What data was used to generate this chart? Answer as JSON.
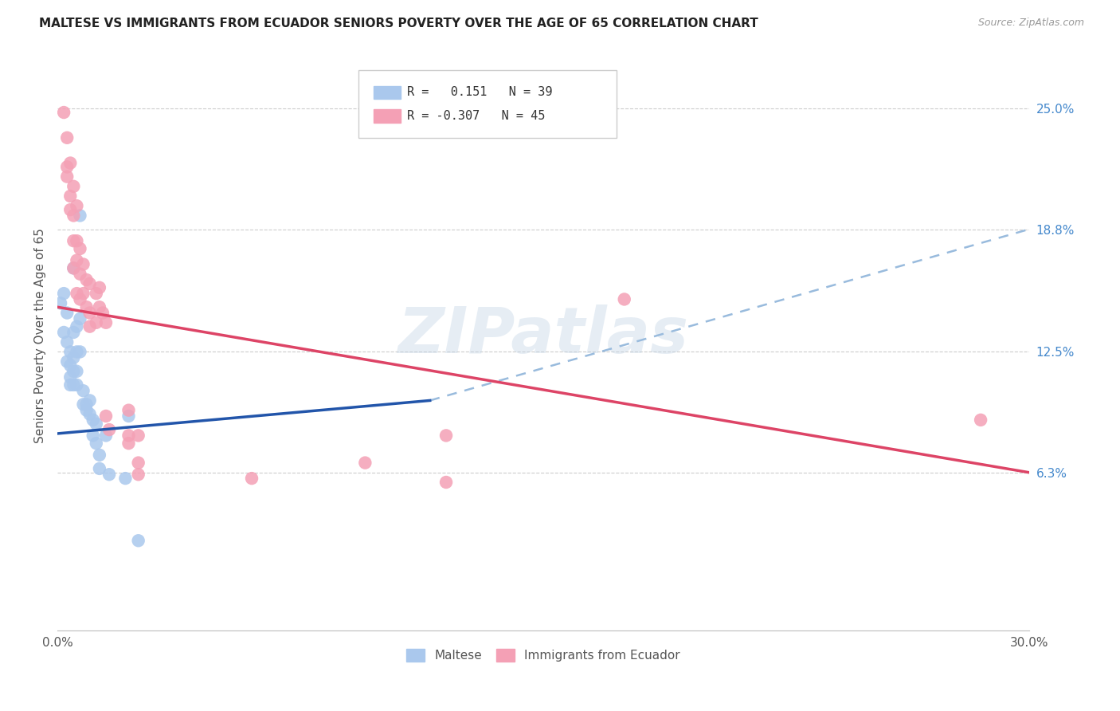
{
  "title": "MALTESE VS IMMIGRANTS FROM ECUADOR SENIORS POVERTY OVER THE AGE OF 65 CORRELATION CHART",
  "source": "Source: ZipAtlas.com",
  "ylabel": "Seniors Poverty Over the Age of 65",
  "xlim": [
    0.0,
    0.3
  ],
  "ylim": [
    -0.018,
    0.285
  ],
  "right_yticks": [
    0.063,
    0.125,
    0.188,
    0.25
  ],
  "right_yticklabels": [
    "6.3%",
    "12.5%",
    "18.8%",
    "25.0%"
  ],
  "blue_solid_line": [
    [
      0.0,
      0.083
    ],
    [
      0.115,
      0.1
    ]
  ],
  "blue_dashed_line": [
    [
      0.115,
      0.1
    ],
    [
      0.3,
      0.188
    ]
  ],
  "pink_solid_line": [
    [
      0.0,
      0.148
    ],
    [
      0.3,
      0.063
    ]
  ],
  "blue_color": "#aac8ed",
  "pink_color": "#f4a0b5",
  "blue_line_color": "#2255aa",
  "pink_line_color": "#dd4466",
  "dashed_line_color": "#99bbdd",
  "watermark": "ZIPatlas",
  "blue_scatter": [
    [
      0.001,
      0.15
    ],
    [
      0.002,
      0.155
    ],
    [
      0.002,
      0.135
    ],
    [
      0.003,
      0.145
    ],
    [
      0.003,
      0.13
    ],
    [
      0.003,
      0.12
    ],
    [
      0.004,
      0.125
    ],
    [
      0.004,
      0.118
    ],
    [
      0.004,
      0.112
    ],
    [
      0.004,
      0.108
    ],
    [
      0.005,
      0.168
    ],
    [
      0.005,
      0.135
    ],
    [
      0.005,
      0.122
    ],
    [
      0.005,
      0.115
    ],
    [
      0.005,
      0.108
    ],
    [
      0.006,
      0.138
    ],
    [
      0.006,
      0.125
    ],
    [
      0.006,
      0.115
    ],
    [
      0.006,
      0.108
    ],
    [
      0.007,
      0.195
    ],
    [
      0.007,
      0.142
    ],
    [
      0.007,
      0.125
    ],
    [
      0.008,
      0.105
    ],
    [
      0.008,
      0.098
    ],
    [
      0.009,
      0.098
    ],
    [
      0.009,
      0.095
    ],
    [
      0.01,
      0.1
    ],
    [
      0.01,
      0.093
    ],
    [
      0.011,
      0.09
    ],
    [
      0.011,
      0.082
    ],
    [
      0.012,
      0.088
    ],
    [
      0.012,
      0.078
    ],
    [
      0.013,
      0.072
    ],
    [
      0.013,
      0.065
    ],
    [
      0.015,
      0.082
    ],
    [
      0.016,
      0.062
    ],
    [
      0.021,
      0.06
    ],
    [
      0.022,
      0.092
    ],
    [
      0.025,
      0.028
    ]
  ],
  "pink_scatter": [
    [
      0.002,
      0.248
    ],
    [
      0.003,
      0.235
    ],
    [
      0.003,
      0.22
    ],
    [
      0.003,
      0.215
    ],
    [
      0.004,
      0.222
    ],
    [
      0.004,
      0.205
    ],
    [
      0.004,
      0.198
    ],
    [
      0.005,
      0.21
    ],
    [
      0.005,
      0.195
    ],
    [
      0.005,
      0.182
    ],
    [
      0.005,
      0.168
    ],
    [
      0.006,
      0.2
    ],
    [
      0.006,
      0.182
    ],
    [
      0.006,
      0.172
    ],
    [
      0.006,
      0.155
    ],
    [
      0.007,
      0.178
    ],
    [
      0.007,
      0.165
    ],
    [
      0.007,
      0.152
    ],
    [
      0.008,
      0.17
    ],
    [
      0.008,
      0.155
    ],
    [
      0.009,
      0.162
    ],
    [
      0.009,
      0.148
    ],
    [
      0.01,
      0.16
    ],
    [
      0.01,
      0.145
    ],
    [
      0.01,
      0.138
    ],
    [
      0.012,
      0.155
    ],
    [
      0.012,
      0.14
    ],
    [
      0.013,
      0.158
    ],
    [
      0.013,
      0.148
    ],
    [
      0.014,
      0.145
    ],
    [
      0.015,
      0.14
    ],
    [
      0.015,
      0.092
    ],
    [
      0.016,
      0.085
    ],
    [
      0.022,
      0.095
    ],
    [
      0.022,
      0.082
    ],
    [
      0.022,
      0.078
    ],
    [
      0.025,
      0.082
    ],
    [
      0.025,
      0.068
    ],
    [
      0.025,
      0.062
    ],
    [
      0.06,
      0.06
    ],
    [
      0.095,
      0.068
    ],
    [
      0.12,
      0.082
    ],
    [
      0.12,
      0.058
    ],
    [
      0.175,
      0.152
    ],
    [
      0.285,
      0.09
    ]
  ]
}
